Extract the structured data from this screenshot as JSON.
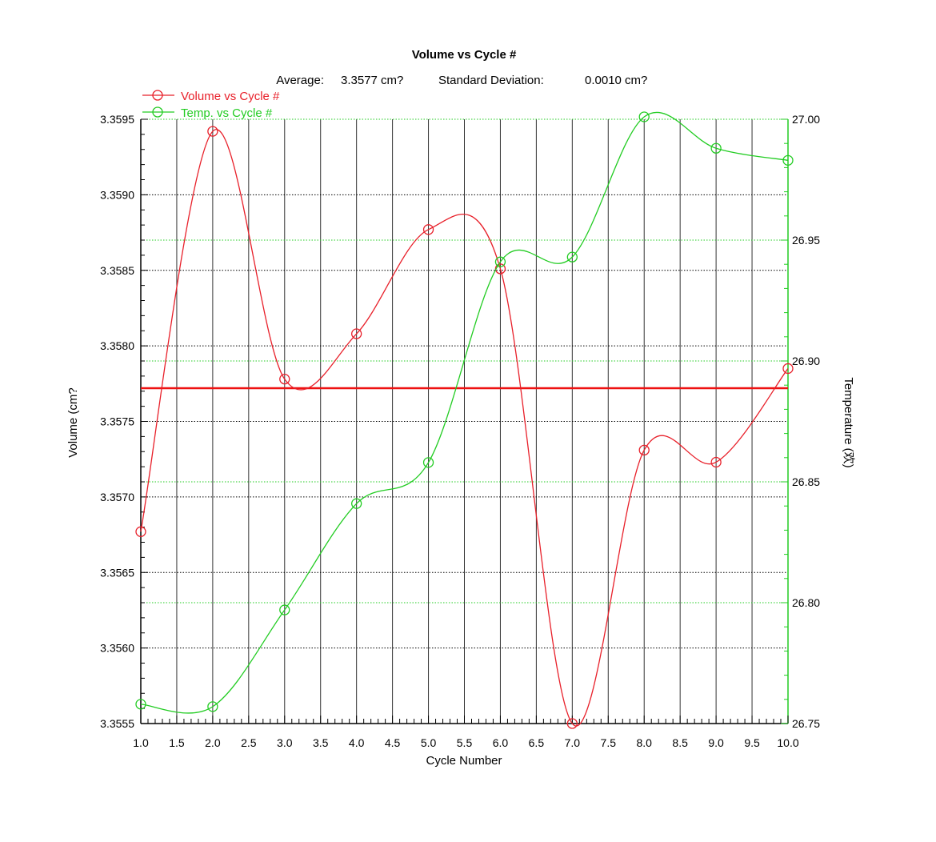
{
  "colors": {
    "volume": "#e8202a",
    "temperature": "#22cc22",
    "average_line": "#ee1111",
    "grid_dark": "#000000",
    "grid_green": "#22cc22",
    "vertical_grid": "#333333",
    "background": "#ffffff"
  },
  "chart_data": {
    "type": "line",
    "title": "Volume vs Cycle #",
    "subtitle": {
      "average_label": "Average:",
      "average_value": "3.3577 cm?",
      "stddev_label": "Standard Deviation:",
      "stddev_value": "0.0010 cm?"
    },
    "xlabel": "Cycle Number",
    "ylabel_left": "Volume (cm?",
    "ylabel_right": "Temperature (欢)",
    "xlim": [
      1.0,
      10.0
    ],
    "ylim_left": [
      3.3555,
      3.3595
    ],
    "ylim_right": [
      26.75,
      27.0
    ],
    "x_ticks": [
      "1.0",
      "1.5",
      "2.0",
      "2.5",
      "3.0",
      "3.5",
      "4.0",
      "4.5",
      "5.0",
      "5.5",
      "6.0",
      "6.5",
      "7.0",
      "7.5",
      "8.0",
      "8.5",
      "9.0",
      "9.5",
      "10.0"
    ],
    "y_left_ticks": [
      "3.3595",
      "3.3590",
      "3.3585",
      "3.3580",
      "3.3575",
      "3.3570",
      "3.3565",
      "3.3560",
      "3.3555"
    ],
    "y_right_ticks": [
      "27.00",
      "26.95",
      "26.90",
      "26.85",
      "26.80",
      "26.75"
    ],
    "grid": true,
    "legend_position": "top-left",
    "average_volume": 3.35772,
    "series": [
      {
        "name": "Volume vs Cycle #",
        "axis": "left",
        "x": [
          1,
          2,
          3,
          4,
          5,
          6,
          7,
          8,
          9,
          10
        ],
        "values": [
          3.35677,
          3.35942,
          3.35778,
          3.35808,
          3.35877,
          3.35851,
          3.3555,
          3.35731,
          3.35723,
          3.35785
        ]
      },
      {
        "name": "Temp. vs Cycle #",
        "axis": "right",
        "x": [
          1,
          2,
          3,
          4,
          5,
          6,
          7,
          8,
          9,
          10
        ],
        "values": [
          26.758,
          26.757,
          26.797,
          26.841,
          26.858,
          26.941,
          26.943,
          27.001,
          26.988,
          26.983
        ]
      }
    ]
  }
}
